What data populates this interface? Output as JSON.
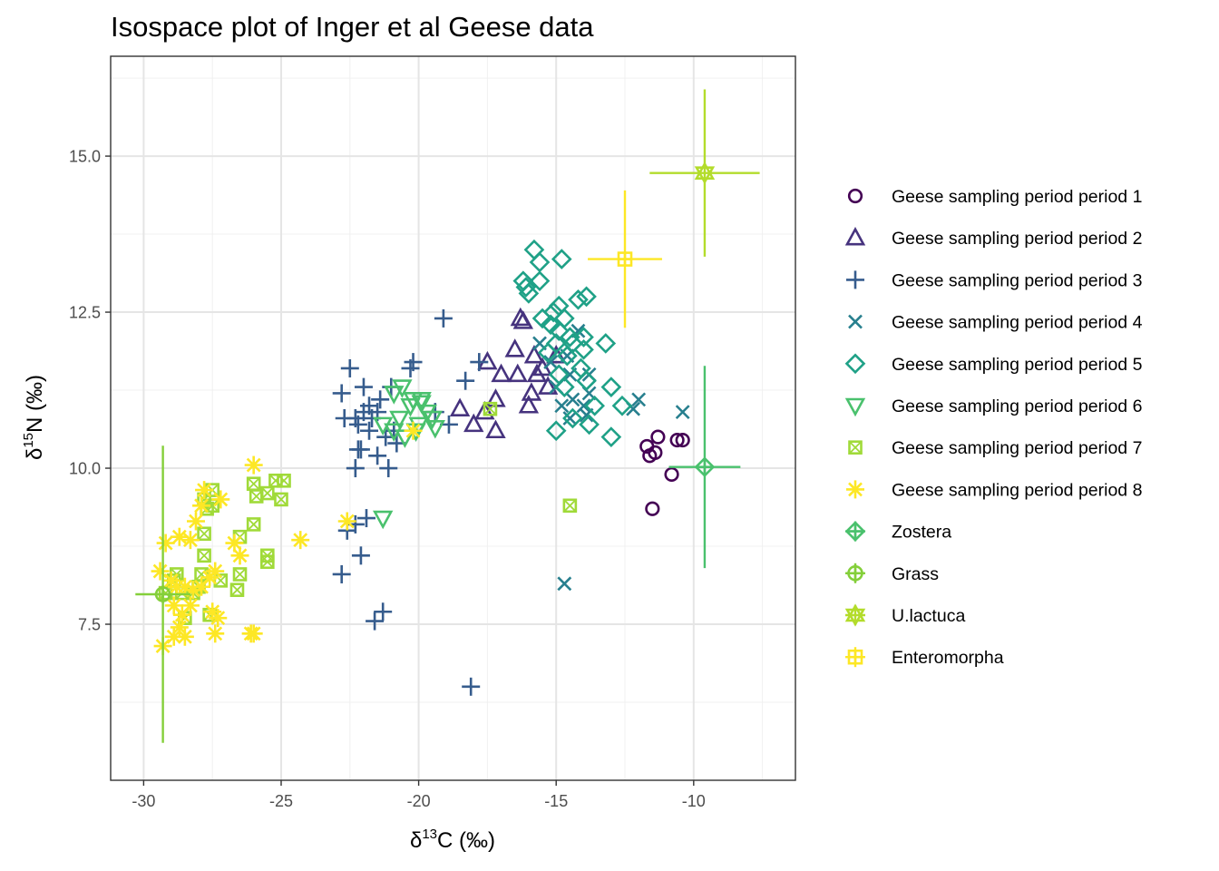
{
  "chart_data": {
    "type": "scatter",
    "title": "Isospace plot of Inger et al Geese data",
    "xlabel": {
      "prefix": "δ",
      "sup": "13",
      "suffix": "C (‰)"
    },
    "ylabel": {
      "prefix": "δ",
      "sup": "15",
      "suffix": "N (‰)"
    },
    "xlim": [
      -31.2,
      -6.3
    ],
    "ylim": [
      5.0,
      16.6
    ],
    "x_ticks": [
      -30,
      -25,
      -20,
      -15,
      -10
    ],
    "x_tick_labels": [
      "-30",
      "-25",
      "-20",
      "-15",
      "-10"
    ],
    "y_ticks": [
      7.5,
      10.0,
      12.5,
      15.0
    ],
    "y_tick_labels": [
      "7.5",
      "10.0",
      "12.5",
      "15.0"
    ],
    "grid": true,
    "legend_position": "right",
    "series": [
      {
        "name": "Geese sampling period period 1",
        "shape": "circle",
        "color": "#440154",
        "points": [
          [
            -11.7,
            10.35
          ],
          [
            -11.6,
            10.2
          ],
          [
            -11.3,
            10.5
          ],
          [
            -11.4,
            10.25
          ],
          [
            -10.8,
            9.9
          ],
          [
            -10.6,
            10.45
          ],
          [
            -10.4,
            10.45
          ],
          [
            -11.5,
            9.35
          ]
        ]
      },
      {
        "name": "Geese sampling period period 2",
        "shape": "triangle",
        "color": "#46337E",
        "points": [
          [
            -16.3,
            12.4
          ],
          [
            -16.2,
            12.35
          ],
          [
            -16.5,
            11.9
          ],
          [
            -15.8,
            11.8
          ],
          [
            -17.5,
            11.7
          ],
          [
            -17.0,
            11.5
          ],
          [
            -16.4,
            11.5
          ],
          [
            -15.7,
            11.5
          ],
          [
            -15.9,
            11.2
          ],
          [
            -16.0,
            11.0
          ],
          [
            -18.5,
            10.95
          ],
          [
            -17.6,
            10.9
          ],
          [
            -17.2,
            11.1
          ],
          [
            -17.2,
            10.6
          ],
          [
            -15.5,
            11.6
          ],
          [
            -15.3,
            11.3
          ],
          [
            -18.0,
            10.7
          ],
          [
            -15.0,
            11.8
          ]
        ]
      },
      {
        "name": "Geese sampling period period 3",
        "shape": "plus",
        "color": "#365C8D",
        "points": [
          [
            -22.5,
            11.6
          ],
          [
            -22.8,
            11.2
          ],
          [
            -22.0,
            11.3
          ],
          [
            -21.4,
            11.1
          ],
          [
            -21.8,
            11.0
          ],
          [
            -22.3,
            10.8
          ],
          [
            -22.7,
            10.8
          ],
          [
            -21.8,
            10.6
          ],
          [
            -21.2,
            10.5
          ],
          [
            -22.1,
            10.3
          ],
          [
            -21.5,
            10.2
          ],
          [
            -20.9,
            10.6
          ],
          [
            -20.3,
            11.6
          ],
          [
            -20.2,
            11.7
          ],
          [
            -21.0,
            11.3
          ],
          [
            -19.4,
            10.9
          ],
          [
            -18.9,
            10.7
          ],
          [
            -18.3,
            11.4
          ],
          [
            -17.8,
            11.7
          ],
          [
            -19.1,
            12.4
          ],
          [
            -22.3,
            10.0
          ],
          [
            -21.1,
            10.0
          ],
          [
            -22.2,
            10.3
          ],
          [
            -20.8,
            10.4
          ],
          [
            -22.6,
            9.0
          ],
          [
            -22.3,
            9.1
          ],
          [
            -22.1,
            8.6
          ],
          [
            -22.8,
            8.3
          ],
          [
            -21.3,
            7.7
          ],
          [
            -21.6,
            7.55
          ],
          [
            -18.1,
            6.5
          ],
          [
            -21.9,
            9.2
          ],
          [
            -22.0,
            10.9
          ],
          [
            -21.7,
            10.8
          ],
          [
            -21.5,
            10.9
          ],
          [
            -22.2,
            10.7
          ]
        ]
      },
      {
        "name": "Geese sampling period period 4",
        "shape": "cross",
        "color": "#277F8E",
        "points": [
          [
            -15.6,
            12.0
          ],
          [
            -14.2,
            12.2
          ],
          [
            -14.6,
            11.8
          ],
          [
            -13.8,
            11.5
          ],
          [
            -13.8,
            11.2
          ],
          [
            -14.4,
            11.1
          ],
          [
            -15.0,
            11.3
          ],
          [
            -14.8,
            11.0
          ],
          [
            -14.5,
            10.8
          ],
          [
            -13.9,
            10.85
          ],
          [
            -12.2,
            10.95
          ],
          [
            -12.0,
            11.1
          ],
          [
            -10.4,
            10.9
          ],
          [
            -14.7,
            8.15
          ],
          [
            -14.5,
            11.5
          ],
          [
            -15.2,
            11.7
          ],
          [
            -14.0,
            11.0
          ]
        ]
      },
      {
        "name": "Geese sampling period period 5",
        "shape": "diamond",
        "color": "#1FA187",
        "points": [
          [
            -15.8,
            13.5
          ],
          [
            -15.6,
            13.3
          ],
          [
            -14.8,
            13.35
          ],
          [
            -16.2,
            13.0
          ],
          [
            -16.1,
            12.9
          ],
          [
            -15.6,
            13.0
          ],
          [
            -15.1,
            12.5
          ],
          [
            -14.9,
            12.6
          ],
          [
            -14.7,
            12.4
          ],
          [
            -14.2,
            12.7
          ],
          [
            -13.9,
            12.75
          ],
          [
            -15.2,
            12.3
          ],
          [
            -14.9,
            12.2
          ],
          [
            -14.4,
            12.0
          ],
          [
            -14.0,
            12.1
          ],
          [
            -13.2,
            12.0
          ],
          [
            -15.3,
            11.85
          ],
          [
            -14.6,
            11.8
          ],
          [
            -14.1,
            11.6
          ],
          [
            -13.9,
            11.4
          ],
          [
            -13.0,
            11.3
          ],
          [
            -12.6,
            11.0
          ],
          [
            -14.9,
            11.5
          ],
          [
            -13.6,
            11.0
          ],
          [
            -13.8,
            10.7
          ],
          [
            -14.4,
            10.8
          ],
          [
            -13.0,
            10.5
          ],
          [
            -15.0,
            10.6
          ],
          [
            -14.7,
            11.3
          ],
          [
            -14.0,
            11.9
          ],
          [
            -14.5,
            12.1
          ],
          [
            -15.5,
            12.4
          ],
          [
            -16.0,
            12.8
          ],
          [
            -15.0,
            12.0
          ]
        ]
      },
      {
        "name": "Geese sampling period period 6",
        "shape": "triangle-down",
        "color": "#4AC16D",
        "points": [
          [
            -20.9,
            11.2
          ],
          [
            -20.6,
            11.3
          ],
          [
            -20.2,
            11.1
          ],
          [
            -19.9,
            11.1
          ],
          [
            -19.7,
            10.9
          ],
          [
            -19.5,
            10.8
          ],
          [
            -20.7,
            10.8
          ],
          [
            -20.9,
            10.6
          ],
          [
            -21.3,
            10.7
          ],
          [
            -20.1,
            10.6
          ],
          [
            -20.5,
            10.5
          ],
          [
            -19.4,
            10.65
          ],
          [
            -19.9,
            11.05
          ],
          [
            -21.3,
            9.2
          ],
          [
            -20.3,
            11.0
          ],
          [
            -20.0,
            10.7
          ]
        ]
      },
      {
        "name": "Geese sampling period period 7",
        "shape": "square-x",
        "color": "#A0DA39",
        "points": [
          [
            -27.5,
            9.65
          ],
          [
            -27.8,
            9.5
          ],
          [
            -27.5,
            9.4
          ],
          [
            -27.7,
            9.35
          ],
          [
            -25.2,
            9.8
          ],
          [
            -24.9,
            9.8
          ],
          [
            -26.0,
            9.75
          ],
          [
            -25.9,
            9.55
          ],
          [
            -25.5,
            9.6
          ],
          [
            -25.0,
            9.5
          ],
          [
            -27.8,
            8.95
          ],
          [
            -26.5,
            8.9
          ],
          [
            -26.0,
            9.1
          ],
          [
            -25.5,
            8.6
          ],
          [
            -25.5,
            8.5
          ],
          [
            -27.8,
            8.6
          ],
          [
            -26.5,
            8.3
          ],
          [
            -26.6,
            8.05
          ],
          [
            -28.8,
            8.3
          ],
          [
            -29.2,
            8.0
          ],
          [
            -28.6,
            8.0
          ],
          [
            -28.2,
            8.0
          ],
          [
            -27.6,
            7.65
          ],
          [
            -28.5,
            7.6
          ],
          [
            -28.9,
            8.2
          ],
          [
            -28.0,
            8.1
          ],
          [
            -17.4,
            10.95
          ],
          [
            -14.5,
            9.4
          ],
          [
            -27.9,
            8.3
          ],
          [
            -27.2,
            8.2
          ]
        ]
      },
      {
        "name": "Geese sampling period period 8",
        "shape": "asterisk",
        "color": "#FDE725",
        "points": [
          [
            -27.8,
            9.65
          ],
          [
            -27.9,
            9.4
          ],
          [
            -28.1,
            9.15
          ],
          [
            -26.0,
            10.05
          ],
          [
            -29.2,
            8.8
          ],
          [
            -28.7,
            8.9
          ],
          [
            -28.3,
            8.85
          ],
          [
            -29.4,
            8.35
          ],
          [
            -29.0,
            8.2
          ],
          [
            -28.8,
            8.1
          ],
          [
            -28.5,
            8.1
          ],
          [
            -28.2,
            8.05
          ],
          [
            -27.9,
            8.1
          ],
          [
            -27.6,
            8.25
          ],
          [
            -27.4,
            8.35
          ],
          [
            -28.9,
            7.8
          ],
          [
            -28.6,
            7.65
          ],
          [
            -28.3,
            7.8
          ],
          [
            -27.5,
            7.7
          ],
          [
            -27.3,
            7.6
          ],
          [
            -28.7,
            7.45
          ],
          [
            -28.5,
            7.3
          ],
          [
            -28.9,
            7.3
          ],
          [
            -29.3,
            7.15
          ],
          [
            -27.4,
            7.35
          ],
          [
            -26.0,
            7.35
          ],
          [
            -26.1,
            7.35
          ],
          [
            -26.7,
            8.8
          ],
          [
            -24.3,
            8.85
          ],
          [
            -22.6,
            9.15
          ],
          [
            -20.2,
            10.6
          ],
          [
            -26.5,
            8.6
          ],
          [
            -27.2,
            9.5
          ]
        ]
      },
      {
        "name": "Zostera",
        "shape": "source-diamond",
        "color": "#4AC16D",
        "mean": [
          -9.6,
          10.02
        ],
        "sd_x": 1.3,
        "sd_y": 1.62
      },
      {
        "name": "Grass",
        "shape": "source-circle",
        "color": "#84CF3A",
        "mean": [
          -29.3,
          7.98
        ],
        "sd_x": 1.0,
        "sd_y": 2.38
      },
      {
        "name": "U.lactuca",
        "shape": "source-star",
        "color": "#B3DC2B",
        "mean": [
          -9.6,
          14.73
        ],
        "sd_x": 2.0,
        "sd_y": 1.34
      },
      {
        "name": "Enteromorpha",
        "shape": "source-square",
        "color": "#FDE725",
        "mean": [
          -12.5,
          13.35
        ],
        "sd_x": 1.35,
        "sd_y": 1.1
      }
    ],
    "legend_symbol_colors": [
      "#440154",
      "#46337E",
      "#365C8D",
      "#277F8E",
      "#1FA187",
      "#4AC16D",
      "#A0DA39",
      "#FDE725",
      "#4AC16D",
      "#84CF3A",
      "#B3DC2B",
      "#FDE725"
    ],
    "legend_shapes": [
      "circle",
      "triangle",
      "plus",
      "cross",
      "diamond",
      "triangle-down",
      "square-x",
      "asterisk",
      "source-diamond",
      "source-circle",
      "source-star",
      "source-square"
    ]
  }
}
